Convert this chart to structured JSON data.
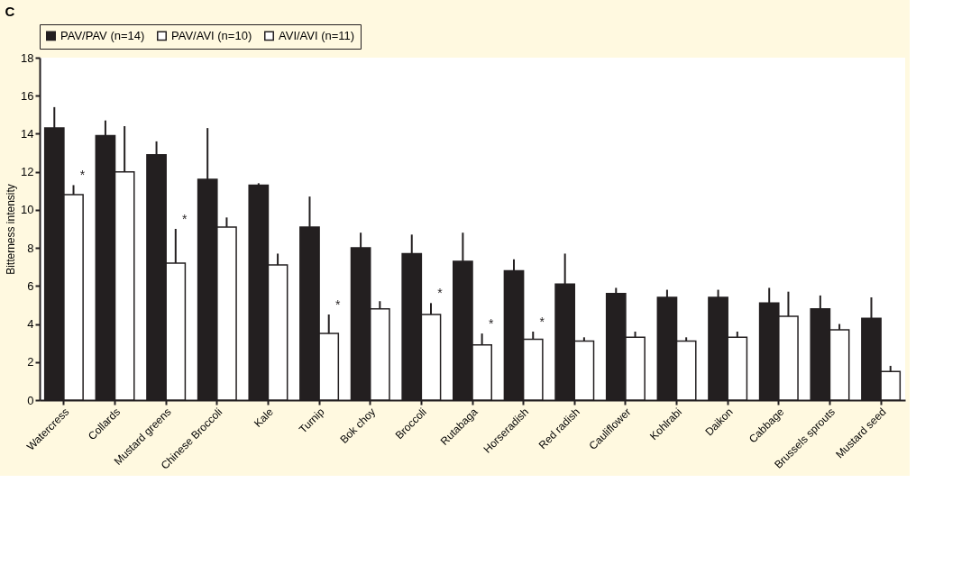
{
  "chart_data": {
    "type": "bar",
    "title": "C",
    "ylabel": "Bitterness intensity",
    "categories": [
      "Watercress",
      "Collards",
      "Mustard greens",
      "Chinese Broccoli",
      "Kale",
      "Turnip",
      "Bok choy",
      "Broccoli",
      "Rutabaga",
      "Horseradish",
      "Red radish",
      "Cauliflower",
      "Kohlrabi",
      "Daikon",
      "Cabbage",
      "Brussels sprouts",
      "Mustard seed"
    ],
    "series": [
      {
        "name": "PAV/PAV (n=14)",
        "color": "#231f20",
        "values": [
          14.3,
          13.9,
          12.9,
          11.6,
          11.3,
          9.1,
          8.0,
          7.7,
          7.3,
          6.8,
          6.1,
          5.6,
          5.4,
          5.4,
          5.1,
          4.8,
          4.3
        ],
        "errors": [
          [
            14.3,
            15.4
          ],
          [
            13.9,
            14.7
          ],
          [
            12.9,
            13.6
          ],
          [
            11.6,
            14.3
          ],
          [
            11.3,
            11.4
          ],
          [
            9.1,
            10.7
          ],
          [
            8.0,
            8.8
          ],
          [
            7.7,
            8.7
          ],
          [
            7.3,
            8.8
          ],
          [
            6.8,
            7.4
          ],
          [
            6.1,
            7.7
          ],
          [
            5.6,
            5.9
          ],
          [
            5.4,
            5.8
          ],
          [
            5.4,
            5.8
          ],
          [
            5.1,
            5.9
          ],
          [
            4.8,
            5.5
          ],
          [
            4.3,
            5.4
          ]
        ]
      },
      {
        "name": "PAV/AVI (n=10)",
        "color": "#ffffff",
        "values": [
          null,
          null,
          null,
          null,
          null,
          null,
          null,
          null,
          null,
          null,
          null,
          null,
          null,
          null,
          null,
          null,
          null
        ]
      },
      {
        "name": "AVI/AVI (n=11)",
        "color": "#ffffff",
        "values": [
          10.8,
          12.0,
          7.2,
          9.1,
          7.1,
          3.5,
          4.8,
          4.5,
          2.9,
          3.2,
          3.1,
          3.3,
          3.1,
          3.3,
          4.4,
          3.7,
          1.5
        ],
        "value_labels": [
          "*",
          null,
          "*",
          null,
          null,
          "*",
          null,
          "*",
          "*",
          "*",
          null,
          null,
          null,
          null,
          null,
          null,
          null
        ],
        "errors": [
          [
            10.8,
            11.3
          ],
          [
            12.0,
            14.4
          ],
          [
            7.2,
            9.0
          ],
          [
            9.1,
            9.6
          ],
          [
            7.1,
            7.7
          ],
          [
            3.5,
            4.5
          ],
          [
            4.8,
            5.2
          ],
          [
            4.5,
            5.1
          ],
          [
            2.9,
            3.5
          ],
          [
            3.2,
            3.6
          ],
          [
            3.1,
            3.3
          ],
          [
            3.3,
            3.6
          ],
          [
            3.1,
            3.3
          ],
          [
            3.3,
            3.6
          ],
          [
            4.4,
            5.7
          ],
          [
            3.7,
            4.0
          ],
          [
            1.5,
            1.8
          ]
        ]
      }
    ],
    "ylim": [
      0,
      18
    ],
    "yticks": [
      0,
      2,
      4,
      6,
      8,
      10,
      12,
      14,
      16,
      18
    ],
    "grid": false,
    "legend": "top"
  }
}
